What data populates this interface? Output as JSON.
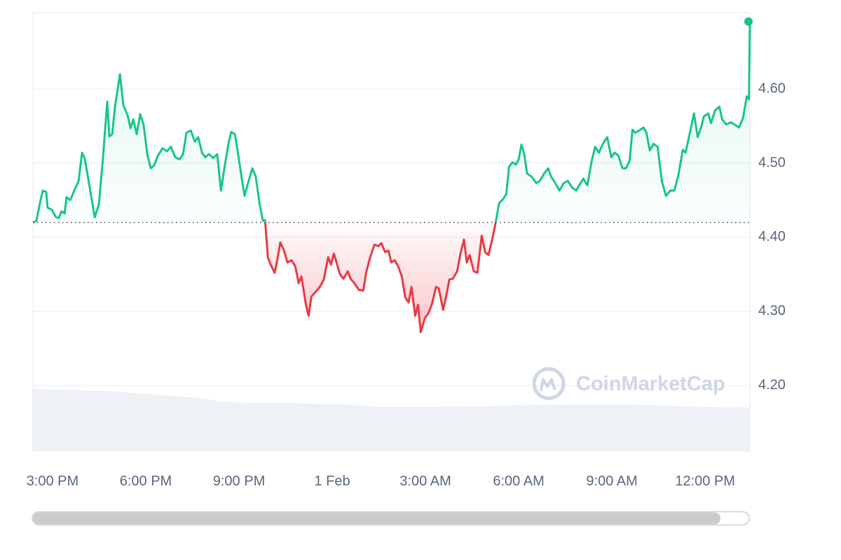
{
  "chart_data": {
    "type": "line",
    "watermark": "CoinMarketCap",
    "x": [
      14.37,
      14.48,
      14.62,
      14.69,
      14.8,
      14.84,
      14.98,
      15.11,
      15.2,
      15.29,
      15.39,
      15.45,
      15.57,
      15.7,
      15.84,
      15.95,
      16.04,
      16.15,
      16.36,
      16.49,
      16.63,
      16.76,
      16.83,
      16.92,
      17.01,
      17.17,
      17.28,
      17.42,
      17.51,
      17.6,
      17.71,
      17.82,
      17.93,
      18.05,
      18.16,
      18.27,
      18.39,
      18.54,
      18.68,
      18.81,
      18.95,
      19.09,
      19.2,
      19.31,
      19.45,
      19.58,
      19.69,
      19.81,
      19.92,
      20.03,
      20.17,
      20.3,
      20.42,
      20.53,
      20.66,
      20.75,
      20.87,
      20.98,
      21.09,
      21.18,
      21.27,
      21.43,
      21.54,
      21.66,
      21.77,
      21.84,
      21.93,
      22.02,
      22.15,
      22.24,
      22.33,
      22.45,
      22.56,
      22.69,
      22.81,
      22.92,
      23.01,
      23.15,
      23.24,
      23.33,
      23.46,
      23.6,
      23.73,
      23.87,
      23.96,
      24.05,
      24.14,
      24.25,
      24.36,
      24.5,
      24.59,
      24.73,
      24.86,
      25.0,
      25.09,
      25.22,
      25.36,
      25.49,
      25.58,
      25.7,
      25.81,
      25.9,
      26.01,
      26.12,
      26.24,
      26.35,
      26.46,
      26.55,
      26.67,
      26.76,
      26.85,
      26.98,
      27.09,
      27.21,
      27.34,
      27.43,
      27.57,
      27.66,
      27.77,
      27.88,
      28.02,
      28.13,
      28.24,
      28.33,
      28.42,
      28.56,
      28.67,
      28.81,
      28.92,
      29.03,
      29.15,
      29.26,
      29.37,
      29.49,
      29.6,
      29.69,
      29.8,
      29.91,
      30.0,
      30.09,
      30.18,
      30.27,
      30.41,
      30.57,
      30.68,
      30.82,
      30.95,
      31.04,
      31.18,
      31.31,
      31.45,
      31.58,
      31.72,
      31.85,
      31.99,
      32.08,
      32.21,
      32.35,
      32.46,
      32.58,
      32.71,
      32.85,
      32.98,
      33.09,
      33.21,
      33.34,
      33.45,
      33.57,
      33.66,
      33.75,
      33.88,
      34.02,
      34.11,
      34.22,
      34.34,
      34.47,
      34.61,
      34.74,
      34.88,
      35.01,
      35.15,
      35.28,
      35.37,
      35.51,
      35.64,
      35.76,
      35.87,
      35.96,
      36.1,
      36.19,
      36.32,
      36.46,
      36.55,
      36.68,
      36.82,
      36.95,
      37.09,
      37.22,
      37.34,
      37.41,
      37.44
    ],
    "values": [
      4.42,
      4.422,
      4.451,
      4.463,
      4.461,
      4.44,
      4.437,
      4.427,
      4.426,
      4.435,
      4.432,
      4.454,
      4.45,
      4.463,
      4.476,
      4.514,
      4.506,
      4.479,
      4.427,
      4.444,
      4.51,
      4.583,
      4.536,
      4.539,
      4.576,
      4.62,
      4.578,
      4.564,
      4.547,
      4.559,
      4.539,
      4.566,
      4.552,
      4.512,
      4.493,
      4.497,
      4.51,
      4.52,
      4.516,
      4.522,
      4.508,
      4.505,
      4.512,
      4.541,
      4.544,
      4.529,
      4.535,
      4.514,
      4.508,
      4.512,
      4.507,
      4.512,
      4.463,
      4.493,
      4.526,
      4.542,
      4.539,
      4.51,
      4.479,
      4.456,
      4.47,
      4.493,
      4.482,
      4.446,
      4.422,
      4.423,
      4.373,
      4.363,
      4.352,
      4.371,
      4.393,
      4.382,
      4.366,
      4.369,
      4.361,
      4.338,
      4.347,
      4.31,
      4.294,
      4.32,
      4.326,
      4.333,
      4.343,
      4.373,
      4.363,
      4.378,
      4.366,
      4.35,
      4.344,
      4.354,
      4.344,
      4.337,
      4.329,
      4.328,
      4.352,
      4.373,
      4.39,
      4.388,
      4.392,
      4.38,
      4.382,
      4.366,
      4.369,
      4.361,
      4.347,
      4.319,
      4.312,
      4.333,
      4.294,
      4.309,
      4.272,
      4.291,
      4.297,
      4.31,
      4.333,
      4.331,
      4.302,
      4.319,
      4.343,
      4.344,
      4.354,
      4.378,
      4.397,
      4.366,
      4.376,
      4.354,
      4.352,
      4.402,
      4.38,
      4.376,
      4.397,
      4.42,
      4.446,
      4.451,
      4.458,
      4.495,
      4.501,
      4.498,
      4.505,
      4.525,
      4.512,
      4.486,
      4.482,
      4.473,
      4.476,
      4.486,
      4.493,
      4.482,
      4.473,
      4.463,
      4.473,
      4.476,
      4.467,
      4.463,
      4.473,
      4.479,
      4.47,
      4.503,
      4.522,
      4.514,
      4.526,
      4.535,
      4.508,
      4.514,
      4.51,
      4.493,
      4.493,
      4.503,
      4.545,
      4.541,
      4.544,
      4.548,
      4.541,
      4.517,
      4.526,
      4.522,
      4.475,
      4.456,
      4.463,
      4.463,
      4.486,
      4.518,
      4.514,
      4.541,
      4.567,
      4.535,
      4.548,
      4.563,
      4.567,
      4.554,
      4.571,
      4.576,
      4.559,
      4.552,
      4.555,
      4.552,
      4.548,
      4.561,
      4.59,
      4.586,
      4.691
    ],
    "up_color": "#16c784",
    "down_color": "#ea3943",
    "xlim": [
      14.37,
      37.44
    ],
    "xticks": [
      {
        "value": 15,
        "label": "3:00 PM"
      },
      {
        "value": 18,
        "label": "6:00 PM"
      },
      {
        "value": 21,
        "label": "9:00 PM"
      },
      {
        "value": 24,
        "label": "1 Feb"
      },
      {
        "value": 27,
        "label": "3:00 AM"
      },
      {
        "value": 30,
        "label": "6:00 AM"
      },
      {
        "value": 33,
        "label": "9:00 AM"
      },
      {
        "value": 36,
        "label": "12:00 PM"
      }
    ],
    "ylim": [
      4.111,
      4.703
    ],
    "yticks": [
      {
        "value": 4.2,
        "label": "4.20"
      },
      {
        "value": 4.3,
        "label": "4.30"
      },
      {
        "value": 4.4,
        "label": "4.40"
      },
      {
        "value": 4.5,
        "label": "4.50"
      },
      {
        "value": 4.6,
        "label": "4.60"
      }
    ],
    "grid": true
  }
}
